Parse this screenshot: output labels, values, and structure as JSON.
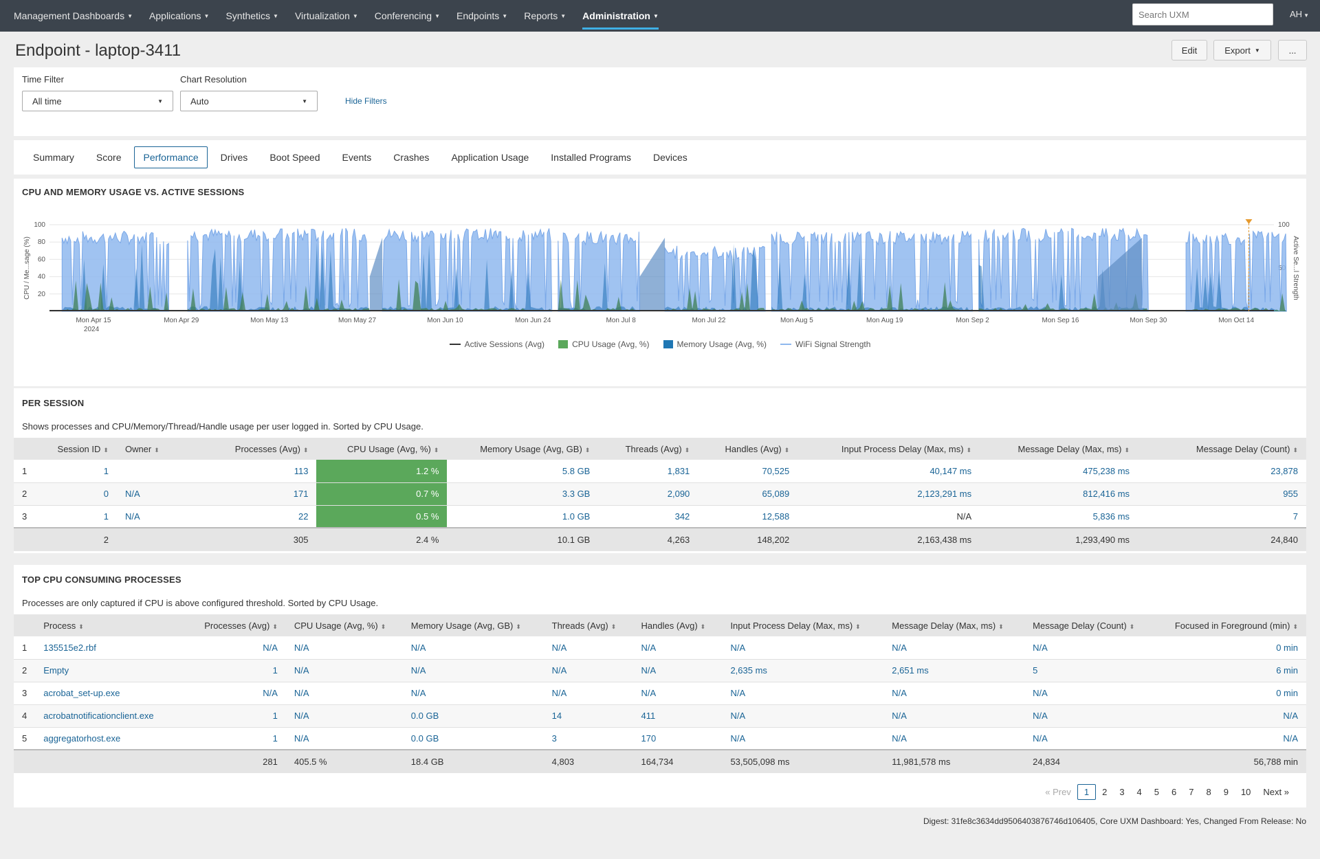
{
  "nav": {
    "items": [
      {
        "label": "Management Dashboards",
        "active": false
      },
      {
        "label": "Applications",
        "active": false
      },
      {
        "label": "Synthetics",
        "active": false
      },
      {
        "label": "Virtualization",
        "active": false
      },
      {
        "label": "Conferencing",
        "active": false
      },
      {
        "label": "Endpoints",
        "active": false
      },
      {
        "label": "Reports",
        "active": false
      },
      {
        "label": "Administration",
        "active": true
      }
    ],
    "search_placeholder": "Search UXM",
    "user": "AH"
  },
  "header": {
    "title": "Endpoint - laptop-3411",
    "edit_label": "Edit",
    "export_label": "Export",
    "more_label": "..."
  },
  "filters": {
    "time_filter_label": "Time Filter",
    "time_filter_value": "All time",
    "chart_resolution_label": "Chart Resolution",
    "chart_resolution_value": "Auto",
    "hide_filters_label": "Hide Filters"
  },
  "tabs": [
    {
      "label": "Summary",
      "active": false
    },
    {
      "label": "Score",
      "active": false
    },
    {
      "label": "Performance",
      "active": true
    },
    {
      "label": "Drives",
      "active": false
    },
    {
      "label": "Boot Speed",
      "active": false
    },
    {
      "label": "Events",
      "active": false
    },
    {
      "label": "Crashes",
      "active": false
    },
    {
      "label": "Application Usage",
      "active": false
    },
    {
      "label": "Installed Programs",
      "active": false
    },
    {
      "label": "Devices",
      "active": false
    }
  ],
  "chart_section": {
    "title": "CPU AND MEMORY USAGE VS. ACTIVE SESSIONS"
  },
  "chart_data": {
    "type": "area",
    "title": "",
    "ylabel": "CPU / Me...sage (%)",
    "y2label": "Active Se...l Strength",
    "ylim": [
      0,
      100
    ],
    "y2lim": [
      0,
      100
    ],
    "yticks": [
      20,
      40,
      60,
      80,
      100
    ],
    "y2ticks": [
      50,
      100
    ],
    "x_ticks": [
      "Mon Apr 15",
      "Mon Apr 29",
      "Mon May 13",
      "Mon May 27",
      "Mon Jun 10",
      "Mon Jun 24",
      "Mon Jul 8",
      "Mon Jul 22",
      "Mon Aug 5",
      "Mon Aug 19",
      "Mon Sep 2",
      "Mon Sep 16",
      "Mon Sep 30",
      "Mon Oct 14"
    ],
    "x_sub_label": "2024",
    "x_range": [
      "2024-04-08",
      "2024-10-20"
    ],
    "grid": true,
    "legend_position": "bottom",
    "series": [
      {
        "name": "Active Sessions (Avg)",
        "color": "#333333"
      },
      {
        "name": "CPU Usage (Avg, %)",
        "color": "#5ba85b"
      },
      {
        "name": "Memory Usage (Avg, %)",
        "color": "#1f77b4"
      },
      {
        "name": "WiFi Signal Strength",
        "color": "#8fb8ee"
      }
    ],
    "wifi_segments": [
      {
        "from": "2024-04-10",
        "to": "2024-04-27",
        "level": 85
      },
      {
        "from": "2024-04-30",
        "to": "2024-05-29",
        "level": 88
      },
      {
        "from": "2024-05-31",
        "to": "2024-06-27",
        "level": 88
      },
      {
        "from": "2024-06-28",
        "to": "2024-07-11",
        "level": 85
      },
      {
        "from": "2024-07-15",
        "to": "2024-07-31",
        "level": 68
      },
      {
        "from": "2024-08-01",
        "to": "2024-09-02",
        "level": 85
      },
      {
        "from": "2024-09-03",
        "to": "2024-09-30",
        "level": 88
      },
      {
        "from": "2024-10-06",
        "to": "2024-10-22",
        "level": 85
      }
    ],
    "gaps": [
      {
        "from": "2024-05-29",
        "to": "2024-05-31"
      },
      {
        "from": "2024-07-11",
        "to": "2024-07-15"
      },
      {
        "from": "2024-09-22",
        "to": "2024-09-29"
      }
    ],
    "marker_date": "2024-10-16"
  },
  "per_session": {
    "title": "PER SESSION",
    "description": "Shows processes and CPU/Memory/Thread/Handle usage per user logged in. Sorted by CPU Usage.",
    "columns": [
      "Session ID",
      "Owner",
      "Processes (Avg)",
      "CPU Usage (Avg, %)",
      "Memory Usage (Avg, GB)",
      "Threads (Avg)",
      "Handles (Avg)",
      "Input Process Delay (Max, ms)",
      "Message Delay (Max, ms)",
      "Message Delay (Count)"
    ],
    "rows": [
      {
        "idx": "1",
        "session": "1",
        "owner": "",
        "processes": "113",
        "cpu": "1.2 %",
        "memory": "5.8 GB",
        "threads": "1,831",
        "handles": "70,525",
        "input_delay": "40,147 ms",
        "msg_delay": "475,238 ms",
        "msg_count": "23,878"
      },
      {
        "idx": "2",
        "session": "0",
        "owner": "N/A",
        "processes": "171",
        "cpu": "0.7 %",
        "memory": "3.3 GB",
        "threads": "2,090",
        "handles": "65,089",
        "input_delay": "2,123,291 ms",
        "msg_delay": "812,416 ms",
        "msg_count": "955"
      },
      {
        "idx": "3",
        "session": "1",
        "owner": "N/A",
        "processes": "22",
        "cpu": "0.5 %",
        "memory": "1.0 GB",
        "threads": "342",
        "handles": "12,588",
        "input_delay": "N/A",
        "msg_delay": "5,836 ms",
        "msg_count": "7"
      }
    ],
    "totals": {
      "session": "2",
      "processes": "305",
      "cpu": "2.4 %",
      "memory": "10.1 GB",
      "threads": "4,263",
      "handles": "148,202",
      "input_delay": "2,163,438 ms",
      "msg_delay": "1,293,490 ms",
      "msg_count": "24,840"
    }
  },
  "top_cpu": {
    "title": "TOP CPU CONSUMING PROCESSES",
    "description": "Processes are only captured if CPU is above configured threshold. Sorted by CPU Usage.",
    "columns": [
      "Process",
      "Processes (Avg)",
      "CPU Usage (Avg, %)",
      "Memory Usage (Avg, GB)",
      "Threads (Avg)",
      "Handles (Avg)",
      "Input Process Delay (Max, ms)",
      "Message Delay (Max, ms)",
      "Message Delay (Count)",
      "Focused in Foreground (min)"
    ],
    "rows": [
      {
        "idx": "1",
        "process": "135515e2.rbf",
        "processes": "N/A",
        "cpu": "N/A",
        "memory": "N/A",
        "threads": "N/A",
        "handles": "N/A",
        "input_delay": "N/A",
        "msg_delay": "N/A",
        "msg_count": "N/A",
        "focused": "0 min"
      },
      {
        "idx": "2",
        "process": "Empty",
        "processes": "1",
        "cpu": "N/A",
        "memory": "N/A",
        "threads": "N/A",
        "handles": "N/A",
        "input_delay": "2,635 ms",
        "msg_delay": "2,651 ms",
        "msg_count": "5",
        "focused": "6 min"
      },
      {
        "idx": "3",
        "process": "acrobat_set-up.exe",
        "processes": "N/A",
        "cpu": "N/A",
        "memory": "N/A",
        "threads": "N/A",
        "handles": "N/A",
        "input_delay": "N/A",
        "msg_delay": "N/A",
        "msg_count": "N/A",
        "focused": "0 min"
      },
      {
        "idx": "4",
        "process": "acrobatnotificationclient.exe",
        "processes": "1",
        "cpu": "N/A",
        "memory": "0.0 GB",
        "threads": "14",
        "handles": "411",
        "input_delay": "N/A",
        "msg_delay": "N/A",
        "msg_count": "N/A",
        "focused": "N/A"
      },
      {
        "idx": "5",
        "process": "aggregatorhost.exe",
        "processes": "1",
        "cpu": "N/A",
        "memory": "0.0 GB",
        "threads": "3",
        "handles": "170",
        "input_delay": "N/A",
        "msg_delay": "N/A",
        "msg_count": "N/A",
        "focused": "N/A"
      }
    ],
    "totals": {
      "processes": "281",
      "cpu": "405.5 %",
      "memory": "18.4 GB",
      "threads": "4,803",
      "handles": "164,734",
      "input_delay": "53,505,098 ms",
      "msg_delay": "11,981,578 ms",
      "msg_count": "24,834",
      "focused": "56,788 min"
    }
  },
  "pagination": {
    "prev_label": "« Prev",
    "next_label": "Next »",
    "pages": [
      "1",
      "2",
      "3",
      "4",
      "5",
      "6",
      "7",
      "8",
      "9",
      "10"
    ],
    "current": "1"
  },
  "footer": {
    "digest": "Digest: 31fe8c3634dd9506403876746d106405, Core UXM Dashboard: Yes, Changed From Release: No"
  }
}
